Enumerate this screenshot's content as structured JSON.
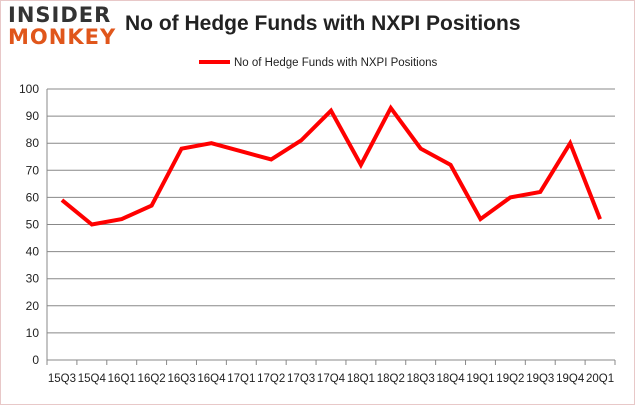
{
  "logo": {
    "line1": "INSIDER",
    "line2": "MONKEY"
  },
  "chart_data": {
    "type": "line",
    "title": "No of Hedge Funds with NXPI Positions",
    "categories": [
      "15Q3",
      "15Q4",
      "16Q1",
      "16Q2",
      "16Q3",
      "16Q4",
      "17Q1",
      "17Q2",
      "17Q3",
      "17Q4",
      "18Q1",
      "18Q2",
      "18Q3",
      "18Q4",
      "19Q1",
      "19Q2",
      "19Q3",
      "19Q4",
      "20Q1"
    ],
    "series": [
      {
        "name": "No of Hedge Funds with NXPI Positions",
        "color": "#ff0000",
        "values": [
          59,
          50,
          52,
          57,
          78,
          80,
          77,
          74,
          81,
          92,
          72,
          93,
          78,
          72,
          52,
          60,
          62,
          80,
          52
        ]
      }
    ],
    "ylim": [
      0,
      100
    ],
    "yticks": [
      0,
      10,
      20,
      30,
      40,
      50,
      60,
      70,
      80,
      90,
      100
    ],
    "grid": true,
    "legend": "top-center"
  }
}
